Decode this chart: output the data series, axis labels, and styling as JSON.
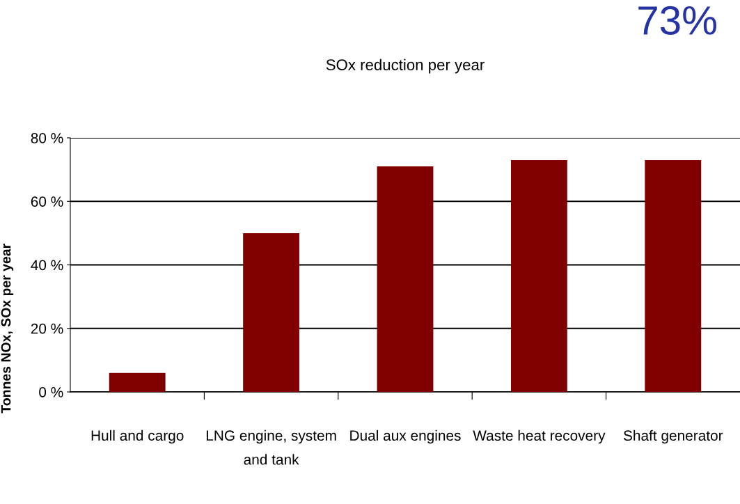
{
  "chart_data": {
    "type": "bar",
    "title": "SOx reduction per year",
    "ylabel": "Tonnes NOx, SOx per year",
    "categories": [
      "Hull and cargo",
      "LNG engine, system\nand tank",
      "Dual aux engines",
      "Waste heat recovery",
      "Shaft generator"
    ],
    "values": [
      6,
      50,
      71,
      73,
      73
    ],
    "color": "#800000",
    "ylim": [
      0,
      80
    ],
    "yticks": [
      {
        "value": 0,
        "label": "0 %"
      },
      {
        "value": 20,
        "label": "20 %"
      },
      {
        "value": 40,
        "label": "40 %"
      },
      {
        "value": 60,
        "label": "60 %"
      },
      {
        "value": 80,
        "label": "80 %"
      }
    ],
    "grid": "y",
    "legend": false,
    "annotations": [
      "73%"
    ]
  }
}
